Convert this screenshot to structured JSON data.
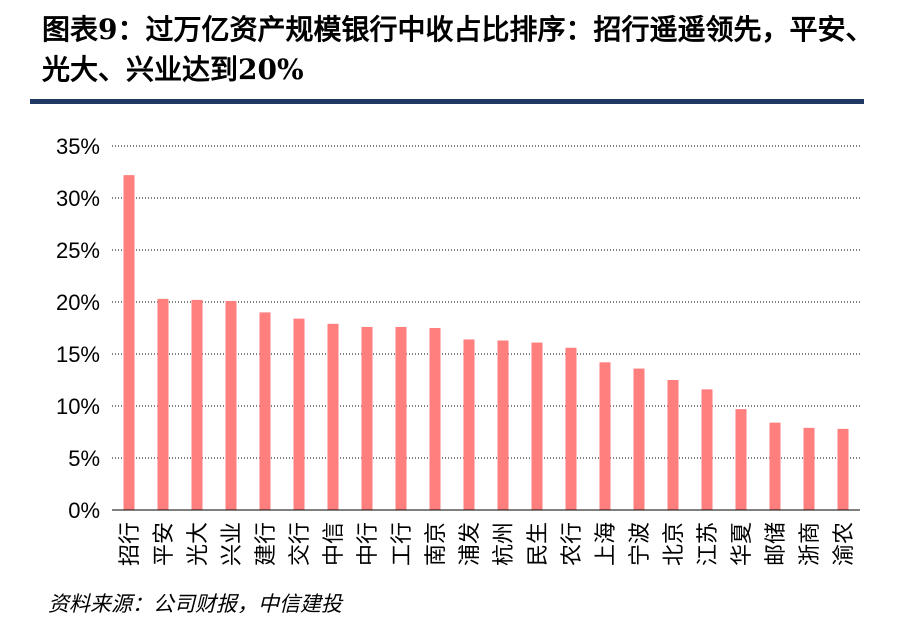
{
  "header": {
    "title": "图表9：过万亿资产规模银行中收占比排序：招行遥遥领先，平安、光大、兴业达到20%"
  },
  "footer": {
    "source": "资料来源：公司财报，中信建投"
  },
  "chart_data": {
    "type": "bar",
    "title": "",
    "xlabel": "",
    "ylabel": "",
    "categories": [
      "招行",
      "平安",
      "光大",
      "兴业",
      "建行",
      "交行",
      "中信",
      "中行",
      "工行",
      "南京",
      "浦发",
      "杭州",
      "民生",
      "农行",
      "上海",
      "宁波",
      "北京",
      "江苏",
      "华夏",
      "邮储",
      "浙商",
      "渝农"
    ],
    "values": [
      32.2,
      20.3,
      20.2,
      20.1,
      19.0,
      18.4,
      17.9,
      17.6,
      17.6,
      17.5,
      16.4,
      16.3,
      16.1,
      15.6,
      14.2,
      13.6,
      12.5,
      11.6,
      9.7,
      8.4,
      7.9,
      7.8
    ],
    "ylim": [
      0,
      35
    ],
    "yticks": [
      "0%",
      "5%",
      "10%",
      "15%",
      "20%",
      "25%",
      "30%",
      "35%"
    ],
    "ytick_values": [
      0,
      5,
      10,
      15,
      20,
      25,
      30,
      35
    ],
    "grid": true,
    "legend": "none",
    "bar_color": "#ff7f7f"
  }
}
